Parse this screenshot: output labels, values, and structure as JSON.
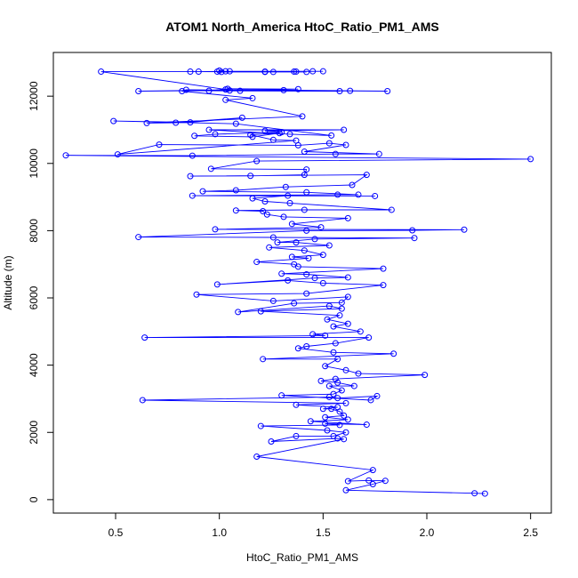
{
  "chart_data": {
    "type": "line",
    "title": "ATOM1 North_America HtoC_Ratio_PM1_AMS",
    "xlabel": "HtoC_Ratio_PM1_AMS",
    "ylabel": "Altitude (m)",
    "xlim": [
      0.2,
      2.6
    ],
    "ylim": [
      -400,
      13300
    ],
    "xticks": [
      0.5,
      1.0,
      1.5,
      2.0,
      2.5
    ],
    "xtick_labels": [
      "0.5",
      "1.0",
      "1.5",
      "2.0",
      "2.5"
    ],
    "yticks": [
      0,
      2000,
      4000,
      6000,
      8000,
      10000,
      12000
    ],
    "ytick_labels": [
      "0",
      "2000",
      "4000",
      "6000",
      "8000",
      "10000",
      "12000"
    ],
    "grid": false,
    "markers": "open-circle",
    "series": [
      {
        "color": "#0000ff",
        "points": [
          [
            2.28,
            180
          ],
          [
            2.23,
            190
          ],
          [
            1.61,
            280
          ],
          [
            1.74,
            460
          ],
          [
            1.8,
            560
          ],
          [
            1.72,
            570
          ],
          [
            1.62,
            550
          ],
          [
            1.74,
            880
          ],
          [
            1.18,
            1280
          ],
          [
            1.6,
            1800
          ],
          [
            1.57,
            1820
          ],
          [
            1.25,
            1730
          ],
          [
            1.37,
            1890
          ],
          [
            1.55,
            1890
          ],
          [
            1.61,
            2000
          ],
          [
            1.52,
            2060
          ],
          [
            1.2,
            2190
          ],
          [
            1.58,
            2220
          ],
          [
            1.51,
            2260
          ],
          [
            1.71,
            2230
          ],
          [
            1.44,
            2330
          ],
          [
            1.62,
            2380
          ],
          [
            1.51,
            2450
          ],
          [
            1.6,
            2500
          ],
          [
            1.58,
            2620
          ],
          [
            1.54,
            2700
          ],
          [
            1.5,
            2700
          ],
          [
            1.57,
            2750
          ],
          [
            1.37,
            2820
          ],
          [
            1.61,
            2870
          ],
          [
            0.63,
            2960
          ],
          [
            1.53,
            3050
          ],
          [
            1.57,
            3020
          ],
          [
            1.76,
            3080
          ],
          [
            1.73,
            2960
          ],
          [
            1.3,
            3100
          ],
          [
            1.55,
            3140
          ],
          [
            1.59,
            3250
          ],
          [
            1.53,
            3380
          ],
          [
            1.65,
            3380
          ],
          [
            1.57,
            3480
          ],
          [
            1.49,
            3530
          ],
          [
            1.56,
            3590
          ],
          [
            1.99,
            3710
          ],
          [
            1.67,
            3750
          ],
          [
            1.61,
            3850
          ],
          [
            1.51,
            3970
          ],
          [
            1.57,
            4180
          ],
          [
            1.21,
            4180
          ],
          [
            1.84,
            4340
          ],
          [
            1.55,
            4380
          ],
          [
            1.38,
            4500
          ],
          [
            1.42,
            4560
          ],
          [
            1.56,
            4650
          ],
          [
            1.72,
            4820
          ],
          [
            0.64,
            4820
          ],
          [
            1.51,
            4880
          ],
          [
            1.45,
            4920
          ],
          [
            1.68,
            5000
          ],
          [
            1.55,
            5150
          ],
          [
            1.62,
            5230
          ],
          [
            1.52,
            5360
          ],
          [
            1.58,
            5480
          ],
          [
            1.2,
            5600
          ],
          [
            1.59,
            5680
          ],
          [
            1.53,
            5760
          ],
          [
            1.09,
            5580
          ],
          [
            1.36,
            5840
          ],
          [
            1.59,
            5860
          ],
          [
            1.62,
            6030
          ],
          [
            1.26,
            5910
          ],
          [
            0.89,
            6100
          ],
          [
            1.42,
            6130
          ],
          [
            1.79,
            6380
          ],
          [
            1.5,
            6440
          ],
          [
            1.33,
            6520
          ],
          [
            0.99,
            6400
          ],
          [
            1.46,
            6590
          ],
          [
            1.62,
            6610
          ],
          [
            1.42,
            6700
          ],
          [
            1.3,
            6720
          ],
          [
            1.79,
            6870
          ],
          [
            1.38,
            6930
          ],
          [
            1.36,
            7000
          ],
          [
            1.18,
            7070
          ],
          [
            1.43,
            7180
          ],
          [
            1.35,
            7220
          ],
          [
            1.5,
            7280
          ],
          [
            1.41,
            7410
          ],
          [
            1.24,
            7500
          ],
          [
            1.53,
            7560
          ],
          [
            1.37,
            7650
          ],
          [
            1.28,
            7650
          ],
          [
            1.46,
            7750
          ],
          [
            1.94,
            7780
          ],
          [
            1.26,
            7800
          ],
          [
            0.61,
            7810
          ],
          [
            1.42,
            8000
          ],
          [
            1.93,
            8010
          ],
          [
            2.18,
            8030
          ],
          [
            0.98,
            8040
          ],
          [
            1.49,
            8100
          ],
          [
            1.35,
            8200
          ],
          [
            1.62,
            8370
          ],
          [
            1.31,
            8410
          ],
          [
            1.23,
            8480
          ],
          [
            1.21,
            8580
          ],
          [
            1.08,
            8600
          ],
          [
            1.41,
            8620
          ],
          [
            1.83,
            8620
          ],
          [
            1.34,
            8820
          ],
          [
            1.22,
            8870
          ],
          [
            1.16,
            8960
          ],
          [
            1.33,
            9040
          ],
          [
            1.75,
            9030
          ],
          [
            0.87,
            9040
          ],
          [
            1.57,
            9070
          ],
          [
            1.67,
            9070
          ],
          [
            1.42,
            9140
          ],
          [
            0.92,
            9170
          ],
          [
            1.08,
            9200
          ],
          [
            1.32,
            9300
          ],
          [
            1.64,
            9360
          ],
          [
            1.71,
            9660
          ],
          [
            0.86,
            9620
          ],
          [
            1.15,
            9630
          ],
          [
            1.41,
            9660
          ],
          [
            1.42,
            9820
          ],
          [
            0.96,
            9840
          ],
          [
            1.18,
            10070
          ],
          [
            2.5,
            10130
          ],
          [
            0.26,
            10240
          ],
          [
            0.87,
            10230
          ],
          [
            1.56,
            10280
          ],
          [
            1.77,
            10280
          ],
          [
            1.41,
            10350
          ],
          [
            1.61,
            10550
          ],
          [
            1.53,
            10600
          ],
          [
            1.38,
            10540
          ],
          [
            0.71,
            10560
          ],
          [
            0.51,
            10270
          ],
          [
            1.37,
            10680
          ],
          [
            1.26,
            10700
          ],
          [
            1.15,
            10850
          ],
          [
            1.29,
            10900
          ],
          [
            1.16,
            10790
          ],
          [
            0.88,
            10820
          ],
          [
            0.98,
            10870
          ],
          [
            1.3,
            10930
          ],
          [
            1.22,
            10970
          ],
          [
            1.6,
            11000
          ],
          [
            0.95,
            11000
          ],
          [
            1.34,
            10870
          ],
          [
            1.54,
            10830
          ],
          [
            1.08,
            11180
          ],
          [
            0.49,
            11260
          ],
          [
            0.86,
            11220
          ],
          [
            1.11,
            11360
          ],
          [
            0.79,
            11210
          ],
          [
            0.65,
            11200
          ],
          [
            1.4,
            11400
          ],
          [
            1.03,
            11890
          ],
          [
            1.16,
            11940
          ],
          [
            0.82,
            12150
          ],
          [
            0.84,
            12190
          ],
          [
            1.81,
            12150
          ],
          [
            1.63,
            12160
          ],
          [
            1.31,
            12180
          ],
          [
            1.05,
            12170
          ],
          [
            0.61,
            12150
          ],
          [
            1.38,
            12210
          ],
          [
            1.04,
            12220
          ],
          [
            0.95,
            12160
          ],
          [
            1.58,
            12150
          ],
          [
            1.1,
            12160
          ],
          [
            1.03,
            12200
          ],
          [
            0.43,
            12730
          ],
          [
            1.36,
            12730
          ],
          [
            1.22,
            12730
          ],
          [
            1.45,
            12740
          ],
          [
            0.86,
            12730
          ],
          [
            1.26,
            12720
          ],
          [
            1.01,
            12720
          ],
          [
            1.5,
            12740
          ],
          [
            1.05,
            12740
          ],
          [
            0.9,
            12730
          ],
          [
            1.37,
            12730
          ],
          [
            1.22,
            12720
          ],
          [
            0.99,
            12730
          ],
          [
            1.42,
            12720
          ],
          [
            1.03,
            12740
          ],
          [
            1.0,
            12760
          ]
        ]
      }
    ]
  }
}
